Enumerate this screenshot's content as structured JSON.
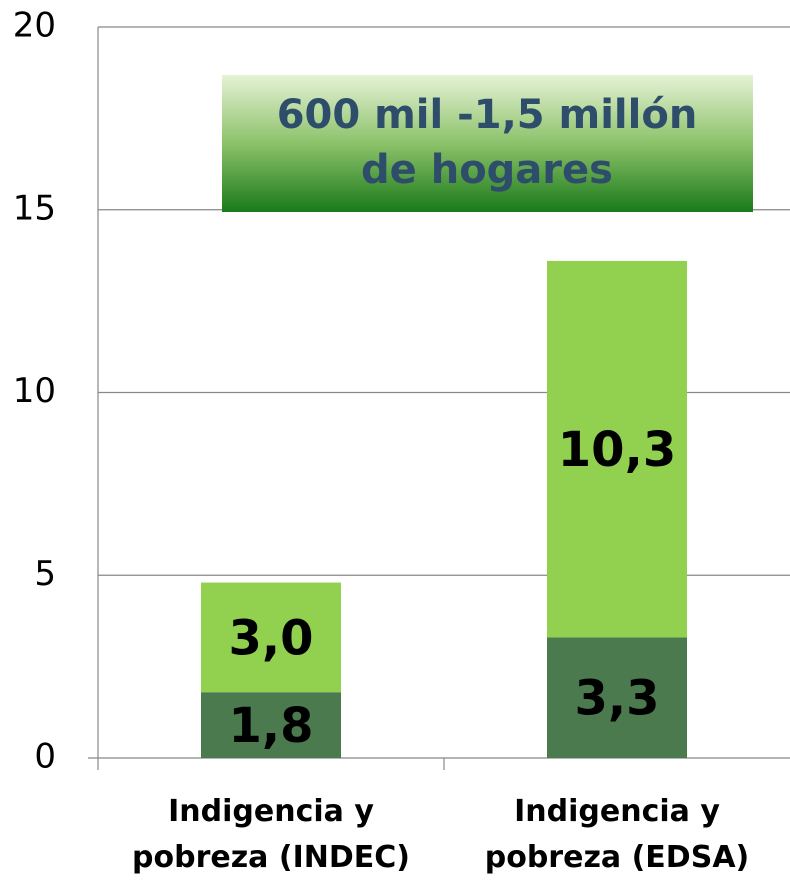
{
  "chart_data": {
    "type": "bar",
    "stacked": true,
    "categories": [
      "Indigencia y pobreza (INDEC)",
      "Indigencia y pobreza (EDSA)"
    ],
    "series": [
      {
        "color": "#4a7a4e",
        "values": [
          1.8,
          3.3
        ],
        "value_labels": [
          "1,8",
          "3,3"
        ]
      },
      {
        "color": "#92d050",
        "values": [
          3.0,
          10.3
        ],
        "value_labels": [
          "3,0",
          "10,3"
        ]
      }
    ],
    "annotation": [
      "600 mil -1,5 millón",
      "de hogares"
    ],
    "ylim": [
      0,
      20
    ],
    "yticks": [
      0,
      5,
      10,
      15,
      20
    ],
    "grid": true
  }
}
